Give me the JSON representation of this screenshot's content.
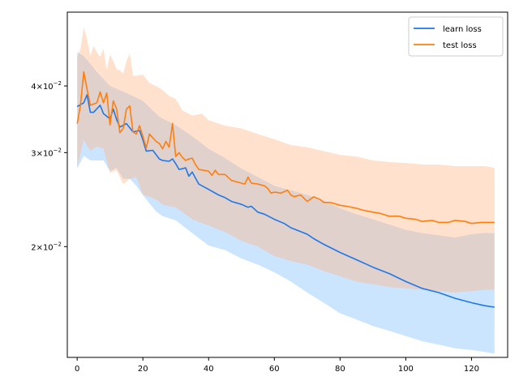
{
  "chart_data": {
    "type": "line",
    "title": "",
    "xlabel": "",
    "ylabel": "",
    "xlim": [
      -3,
      131
    ],
    "ylim": [
      0.0124,
      0.055
    ],
    "yscale": "log",
    "grid": false,
    "legend_position": "top-right",
    "x_ticks": [
      0,
      20,
      40,
      60,
      80,
      100,
      120
    ],
    "x_tick_labels": [
      "0",
      "20",
      "40",
      "60",
      "80",
      "100",
      "120"
    ],
    "y_ticks": [
      0.02,
      0.03,
      0.04
    ],
    "y_tick_labels": [
      {
        "base": "2",
        "mid": "×10",
        "exp": "−2"
      },
      {
        "base": "3",
        "mid": "×10",
        "exp": "−2"
      },
      {
        "base": "4",
        "mid": "×10",
        "exp": "−2"
      }
    ],
    "series": [
      {
        "name": "learn loss",
        "color": "#1f77e8",
        "band_color": "#7fbfff",
        "mean": [
          [
            0,
            0.0366
          ],
          [
            2,
            0.0372
          ],
          [
            3,
            0.0385
          ],
          [
            4,
            0.0357
          ],
          [
            5,
            0.0357
          ],
          [
            7,
            0.0368
          ],
          [
            8,
            0.0355
          ],
          [
            10,
            0.0347
          ],
          [
            11,
            0.0362
          ],
          [
            12,
            0.0346
          ],
          [
            13,
            0.0335
          ],
          [
            15,
            0.034
          ],
          [
            17,
            0.0328
          ],
          [
            19,
            0.033
          ],
          [
            20,
            0.0317
          ],
          [
            21,
            0.0302
          ],
          [
            23,
            0.0303
          ],
          [
            25,
            0.0292
          ],
          [
            26,
            0.029
          ],
          [
            28,
            0.0289
          ],
          [
            29,
            0.0292
          ],
          [
            30,
            0.0286
          ],
          [
            31,
            0.0279
          ],
          [
            33,
            0.0281
          ],
          [
            34,
            0.0271
          ],
          [
            35,
            0.0276
          ],
          [
            37,
            0.0262
          ],
          [
            40,
            0.0256
          ],
          [
            43,
            0.025
          ],
          [
            45,
            0.0247
          ],
          [
            47,
            0.0243
          ],
          [
            50,
            0.024
          ],
          [
            52,
            0.0237
          ],
          [
            53,
            0.0238
          ],
          [
            55,
            0.0232
          ],
          [
            57,
            0.023
          ],
          [
            60,
            0.0225
          ],
          [
            63,
            0.0221
          ],
          [
            65,
            0.0217
          ],
          [
            70,
            0.0211
          ],
          [
            72,
            0.0207
          ],
          [
            75,
            0.0202
          ],
          [
            80,
            0.0195
          ],
          [
            85,
            0.0189
          ],
          [
            90,
            0.0183
          ],
          [
            95,
            0.0178
          ],
          [
            100,
            0.0172
          ],
          [
            105,
            0.0167
          ],
          [
            110,
            0.0164
          ],
          [
            115,
            0.016
          ],
          [
            120,
            0.0157
          ],
          [
            124,
            0.0155
          ],
          [
            127,
            0.0154
          ]
        ],
        "upper": [
          [
            0,
            0.0463
          ],
          [
            2,
            0.0455
          ],
          [
            4,
            0.044
          ],
          [
            6,
            0.0425
          ],
          [
            10,
            0.04
          ],
          [
            15,
            0.0388
          ],
          [
            20,
            0.0375
          ],
          [
            25,
            0.035
          ],
          [
            30,
            0.0338
          ],
          [
            35,
            0.0322
          ],
          [
            40,
            0.0305
          ],
          [
            45,
            0.0293
          ],
          [
            50,
            0.028
          ],
          [
            55,
            0.027
          ],
          [
            60,
            0.026
          ],
          [
            65,
            0.0255
          ],
          [
            70,
            0.025
          ],
          [
            75,
            0.0244
          ],
          [
            80,
            0.0236
          ],
          [
            85,
            0.023
          ],
          [
            90,
            0.0225
          ],
          [
            95,
            0.022
          ],
          [
            100,
            0.0215
          ],
          [
            105,
            0.0212
          ],
          [
            110,
            0.021
          ],
          [
            115,
            0.0208
          ],
          [
            120,
            0.0211
          ],
          [
            124,
            0.0212
          ],
          [
            127,
            0.0212
          ]
        ],
        "lower": [
          [
            0,
            0.028
          ],
          [
            2,
            0.0296
          ],
          [
            4,
            0.029
          ],
          [
            6,
            0.029
          ],
          [
            8,
            0.029
          ],
          [
            10,
            0.0277
          ],
          [
            12,
            0.0281
          ],
          [
            14,
            0.0268
          ],
          [
            16,
            0.0268
          ],
          [
            18,
            0.026
          ],
          [
            20,
            0.025
          ],
          [
            22,
            0.0241
          ],
          [
            24,
            0.0233
          ],
          [
            26,
            0.0228
          ],
          [
            28,
            0.0226
          ],
          [
            30,
            0.0224
          ],
          [
            35,
            0.0212
          ],
          [
            40,
            0.0201
          ],
          [
            45,
            0.0197
          ],
          [
            50,
            0.019
          ],
          [
            55,
            0.0185
          ],
          [
            60,
            0.0179
          ],
          [
            65,
            0.0172
          ],
          [
            70,
            0.0164
          ],
          [
            75,
            0.0157
          ],
          [
            80,
            0.015
          ],
          [
            85,
            0.0146
          ],
          [
            90,
            0.0142
          ],
          [
            95,
            0.0139
          ],
          [
            100,
            0.0136
          ],
          [
            105,
            0.0133
          ],
          [
            110,
            0.0131
          ],
          [
            115,
            0.0129
          ],
          [
            120,
            0.0128
          ],
          [
            124,
            0.0127
          ],
          [
            127,
            0.0126
          ]
        ]
      },
      {
        "name": "test loss",
        "color": "#ff7f0e",
        "band_color": "#ffb482",
        "mean": [
          [
            0,
            0.034
          ],
          [
            1,
            0.0368
          ],
          [
            2,
            0.0425
          ],
          [
            3,
            0.0395
          ],
          [
            4,
            0.0368
          ],
          [
            5,
            0.037
          ],
          [
            6,
            0.0372
          ],
          [
            7,
            0.039
          ],
          [
            8,
            0.0372
          ],
          [
            9,
            0.0388
          ],
          [
            10,
            0.0338
          ],
          [
            11,
            0.0375
          ],
          [
            12,
            0.0362
          ],
          [
            13,
            0.0327
          ],
          [
            14,
            0.0333
          ],
          [
            15,
            0.0362
          ],
          [
            16,
            0.0367
          ],
          [
            17,
            0.0328
          ],
          [
            18,
            0.0325
          ],
          [
            19,
            0.0337
          ],
          [
            20,
            0.0322
          ],
          [
            21,
            0.0306
          ],
          [
            22,
            0.0325
          ],
          [
            23,
            0.032
          ],
          [
            24,
            0.0315
          ],
          [
            25,
            0.0312
          ],
          [
            26,
            0.0305
          ],
          [
            27,
            0.0315
          ],
          [
            28,
            0.0307
          ],
          [
            29,
            0.034
          ],
          [
            30,
            0.0295
          ],
          [
            31,
            0.03
          ],
          [
            32,
            0.0294
          ],
          [
            33,
            0.029
          ],
          [
            34,
            0.0292
          ],
          [
            35,
            0.0293
          ],
          [
            36,
            0.0285
          ],
          [
            37,
            0.0279
          ],
          [
            40,
            0.0277
          ],
          [
            41,
            0.0272
          ],
          [
            42,
            0.0278
          ],
          [
            43,
            0.0273
          ],
          [
            45,
            0.0273
          ],
          [
            47,
            0.0266
          ],
          [
            50,
            0.0263
          ],
          [
            51,
            0.0262
          ],
          [
            52,
            0.027
          ],
          [
            53,
            0.0263
          ],
          [
            55,
            0.0262
          ],
          [
            57,
            0.026
          ],
          [
            58,
            0.0257
          ],
          [
            59,
            0.0252
          ],
          [
            60,
            0.0253
          ],
          [
            62,
            0.0252
          ],
          [
            64,
            0.0255
          ],
          [
            65,
            0.025
          ],
          [
            66,
            0.0248
          ],
          [
            68,
            0.025
          ],
          [
            70,
            0.0243
          ],
          [
            72,
            0.0248
          ],
          [
            74,
            0.0245
          ],
          [
            75,
            0.0242
          ],
          [
            77,
            0.0242
          ],
          [
            80,
            0.0239
          ],
          [
            82,
            0.0238
          ],
          [
            85,
            0.0236
          ],
          [
            87,
            0.0234
          ],
          [
            90,
            0.0232
          ],
          [
            92,
            0.0231
          ],
          [
            95,
            0.0228
          ],
          [
            98,
            0.0228
          ],
          [
            100,
            0.0226
          ],
          [
            103,
            0.0225
          ],
          [
            105,
            0.0223
          ],
          [
            108,
            0.0224
          ],
          [
            110,
            0.0222
          ],
          [
            113,
            0.0222
          ],
          [
            115,
            0.0224
          ],
          [
            118,
            0.0223
          ],
          [
            120,
            0.0221
          ],
          [
            123,
            0.0222
          ],
          [
            125,
            0.0222
          ],
          [
            127,
            0.0222
          ]
        ],
        "upper": [
          [
            0,
            0.0453
          ],
          [
            1,
            0.047
          ],
          [
            2,
            0.0515
          ],
          [
            3,
            0.049
          ],
          [
            4,
            0.0455
          ],
          [
            5,
            0.0475
          ],
          [
            6,
            0.0462
          ],
          [
            7,
            0.0453
          ],
          [
            8,
            0.047
          ],
          [
            9,
            0.0428
          ],
          [
            10,
            0.0458
          ],
          [
            11,
            0.0445
          ],
          [
            12,
            0.043
          ],
          [
            13,
            0.0428
          ],
          [
            14,
            0.0422
          ],
          [
            15,
            0.0445
          ],
          [
            16,
            0.046
          ],
          [
            17,
            0.0418
          ],
          [
            18,
            0.0418
          ],
          [
            20,
            0.042
          ],
          [
            22,
            0.0405
          ],
          [
            24,
            0.04
          ],
          [
            26,
            0.0393
          ],
          [
            28,
            0.0383
          ],
          [
            30,
            0.0378
          ],
          [
            32,
            0.036
          ],
          [
            35,
            0.0352
          ],
          [
            38,
            0.0355
          ],
          [
            40,
            0.0345
          ],
          [
            45,
            0.0337
          ],
          [
            50,
            0.0333
          ],
          [
            55,
            0.0325
          ],
          [
            60,
            0.0318
          ],
          [
            65,
            0.031
          ],
          [
            70,
            0.0307
          ],
          [
            75,
            0.0302
          ],
          [
            80,
            0.0297
          ],
          [
            85,
            0.0295
          ],
          [
            90,
            0.029
          ],
          [
            95,
            0.0288
          ],
          [
            100,
            0.0287
          ],
          [
            105,
            0.0285
          ],
          [
            110,
            0.0285
          ],
          [
            115,
            0.0283
          ],
          [
            120,
            0.0283
          ],
          [
            124,
            0.0283
          ],
          [
            127,
            0.0281
          ]
        ],
        "lower": [
          [
            0,
            0.0282
          ],
          [
            2,
            0.0317
          ],
          [
            4,
            0.0302
          ],
          [
            6,
            0.0308
          ],
          [
            8,
            0.0305
          ],
          [
            10,
            0.0275
          ],
          [
            12,
            0.0278
          ],
          [
            14,
            0.0262
          ],
          [
            16,
            0.0268
          ],
          [
            18,
            0.027
          ],
          [
            20,
            0.025
          ],
          [
            22,
            0.0248
          ],
          [
            24,
            0.0245
          ],
          [
            26,
            0.024
          ],
          [
            28,
            0.0238
          ],
          [
            30,
            0.0237
          ],
          [
            35,
            0.0225
          ],
          [
            40,
            0.0219
          ],
          [
            45,
            0.0213
          ],
          [
            50,
            0.0205
          ],
          [
            55,
            0.02
          ],
          [
            60,
            0.0192
          ],
          [
            65,
            0.0188
          ],
          [
            70,
            0.0185
          ],
          [
            75,
            0.018
          ],
          [
            80,
            0.0176
          ],
          [
            85,
            0.0172
          ],
          [
            90,
            0.017
          ],
          [
            95,
            0.0168
          ],
          [
            100,
            0.0167
          ],
          [
            105,
            0.0166
          ],
          [
            110,
            0.0165
          ],
          [
            115,
            0.0164
          ],
          [
            120,
            0.0165
          ],
          [
            124,
            0.0166
          ],
          [
            127,
            0.0166
          ]
        ]
      }
    ]
  }
}
